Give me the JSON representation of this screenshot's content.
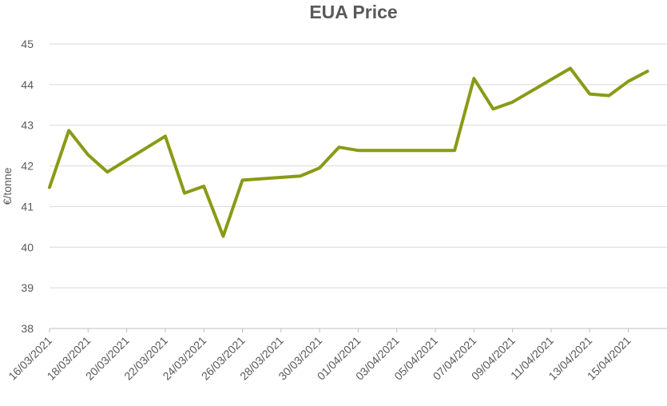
{
  "chart_data": {
    "type": "line",
    "title": "EUA Price",
    "xlabel": "",
    "ylabel": "€/tonne",
    "ylim": [
      38,
      45
    ],
    "yticks": [
      38,
      39,
      40,
      41,
      42,
      43,
      44,
      45
    ],
    "grid": true,
    "x_tick_labels": [
      "16/03/2021",
      "18/03/2021",
      "20/03/2021",
      "22/03/2021",
      "24/03/2021",
      "26/03/2021",
      "28/03/2021",
      "30/03/2021",
      "01/04/2021",
      "03/04/2021",
      "05/04/2021",
      "07/04/2021",
      "09/04/2021",
      "11/04/2021",
      "13/04/2021",
      "15/04/2021"
    ],
    "series": [
      {
        "name": "",
        "color": "#8a9a16",
        "x": [
          "16/03/2021",
          "17/03/2021",
          "18/03/2021",
          "19/03/2021",
          "22/03/2021",
          "23/03/2021",
          "24/03/2021",
          "25/03/2021",
          "26/03/2021",
          "29/03/2021",
          "30/03/2021",
          "31/03/2021",
          "01/04/2021",
          "06/04/2021",
          "07/04/2021",
          "08/04/2021",
          "09/04/2021",
          "12/04/2021",
          "13/04/2021",
          "14/04/2021",
          "15/04/2021",
          "16/04/2021"
        ],
        "values": [
          41.47,
          42.87,
          42.27,
          41.85,
          42.73,
          41.33,
          41.5,
          40.27,
          41.65,
          41.75,
          41.95,
          42.46,
          42.38,
          42.38,
          44.15,
          43.4,
          43.57,
          44.4,
          43.77,
          43.73,
          44.08,
          44.33
        ]
      }
    ]
  }
}
